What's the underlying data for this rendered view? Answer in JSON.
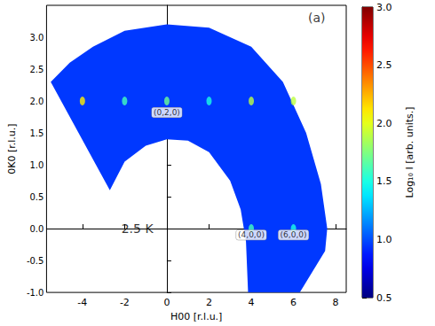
{
  "chart_data": {
    "type": "heatmap",
    "x_label": "H00 [r.l.u.]",
    "y_label": "0K0 [r.l.u.]",
    "xlim": [
      -5.7,
      8.5
    ],
    "xticks": [
      -4,
      -2,
      0,
      2,
      4,
      6,
      8
    ],
    "ylim": [
      -1.0,
      3.5
    ],
    "yticks": [
      {
        "value": -1.0,
        "label": "-1.0"
      },
      {
        "value": -0.5,
        "label": "-0.5"
      },
      {
        "value": 0.0,
        "label": "0.0"
      },
      {
        "value": 0.5,
        "label": "0.5"
      },
      {
        "value": 1.0,
        "label": "1.0"
      },
      {
        "value": 1.5,
        "label": "1.5"
      },
      {
        "value": 2.0,
        "label": "2.0"
      },
      {
        "value": 2.5,
        "label": "2.5"
      },
      {
        "value": 3.0,
        "label": "3.0"
      }
    ],
    "grid": false,
    "coverage": {
      "outline": [
        [
          -5.5,
          2.3
        ],
        [
          -2.7,
          0.6
        ],
        [
          -2.0,
          1.05
        ],
        [
          -1.0,
          1.3
        ],
        [
          0.0,
          1.4
        ],
        [
          1.0,
          1.38
        ],
        [
          2.0,
          1.2
        ],
        [
          3.0,
          0.75
        ],
        [
          3.5,
          0.3
        ],
        [
          3.75,
          -0.2
        ],
        [
          3.85,
          -1.0
        ],
        [
          6.3,
          -1.0
        ],
        [
          7.5,
          -0.35
        ],
        [
          7.6,
          0.0
        ],
        [
          7.3,
          0.7
        ],
        [
          6.6,
          1.5
        ],
        [
          5.5,
          2.3
        ],
        [
          4.0,
          2.85
        ],
        [
          2.0,
          3.15
        ],
        [
          0.0,
          3.2
        ],
        [
          -2.0,
          3.1
        ],
        [
          -3.5,
          2.85
        ],
        [
          -4.6,
          2.6
        ],
        [
          -5.5,
          2.3
        ]
      ],
      "intensity": 0.95
    },
    "peaks": {
      "x": [
        -4,
        -2,
        0,
        2,
        4,
        6,
        4,
        6
      ],
      "y": [
        2,
        2,
        2,
        2,
        2,
        2,
        0,
        0
      ],
      "intensity": [
        2.1,
        1.6,
        1.7,
        1.5,
        1.9,
        1.9,
        1.6,
        1.5
      ]
    },
    "peak_labels": [
      {
        "text": "(0,2,0)",
        "x": 0,
        "y": 1.82
      },
      {
        "text": "(4,0,0)",
        "x": 4,
        "y": -0.1
      },
      {
        "text": "(6,0,0)",
        "x": 6,
        "y": -0.1
      }
    ],
    "annotations": [
      {
        "text": "(a)",
        "x": 7.1,
        "y": 3.3
      },
      {
        "text": "2.5 K",
        "x": -1.4,
        "y": 0.0
      }
    ],
    "colorbar": {
      "label": "Log₁₀ I [arb. units.]",
      "range": [
        0.5,
        3.0
      ],
      "ticks": [
        0.5,
        {
          "value": 1.0,
          "label": "1.0"
        },
        1.5,
        {
          "value": 2.0,
          "label": "2.0"
        },
        2.5,
        {
          "value": 3.0,
          "label": "3.0"
        }
      ]
    }
  }
}
